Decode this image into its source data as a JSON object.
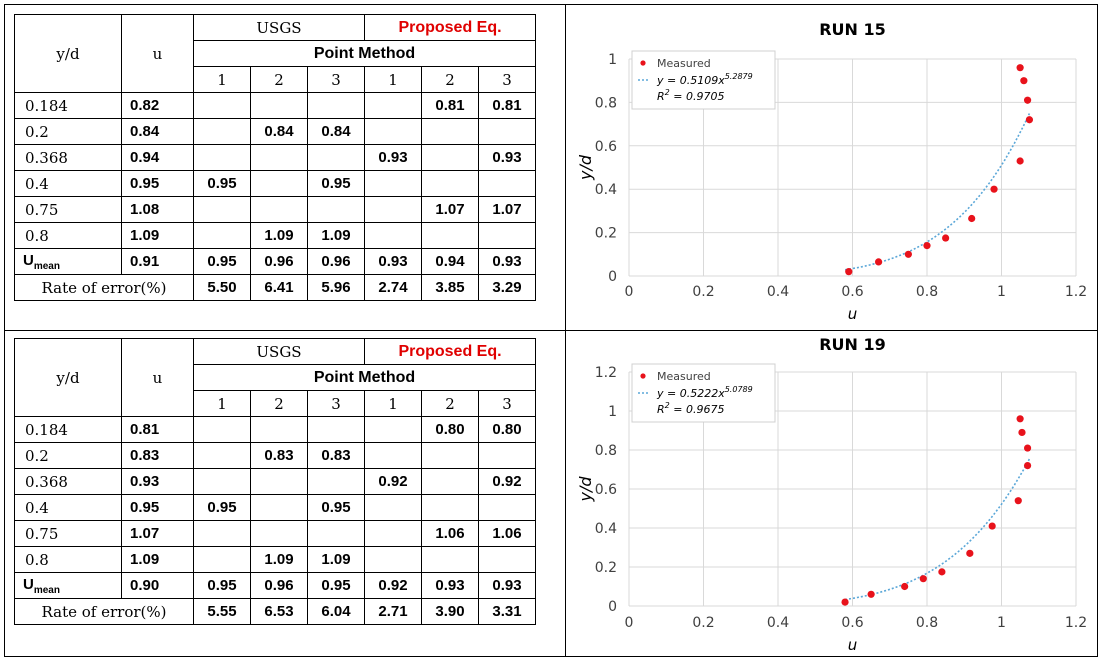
{
  "tables": [
    {
      "usgs_label": "USGS",
      "proposed_label": "Proposed Eq.",
      "point_method_label": "Point Method",
      "col_yd": "y/d",
      "col_u": "u",
      "point_numbers": [
        "1",
        "2",
        "3",
        "1",
        "2",
        "3"
      ],
      "rows": [
        {
          "yd": "0.184",
          "u": "0.82",
          "cells": [
            "",
            "",
            "",
            "",
            "0.81",
            "0.81"
          ]
        },
        {
          "yd": "0.2",
          "u": "0.84",
          "cells": [
            "",
            "0.84",
            "0.84",
            "",
            "",
            ""
          ]
        },
        {
          "yd": "0.368",
          "u": "0.94",
          "cells": [
            "",
            "",
            "",
            "0.93",
            "",
            "0.93"
          ]
        },
        {
          "yd": "0.4",
          "u": "0.95",
          "cells": [
            "0.95",
            "",
            "0.95",
            "",
            "",
            ""
          ]
        },
        {
          "yd": "0.75",
          "u": "1.08",
          "cells": [
            "",
            "",
            "",
            "",
            "1.07",
            "1.07"
          ]
        },
        {
          "yd": "0.8",
          "u": "1.09",
          "cells": [
            "",
            "1.09",
            "1.09",
            "",
            "",
            ""
          ]
        }
      ],
      "umean_label": "U",
      "umean_sub": "mean",
      "umean_u": "0.91",
      "umean_cells": [
        "0.95",
        "0.96",
        "0.96",
        "0.93",
        "0.94",
        "0.93"
      ],
      "error_label": "Rate of error(%)",
      "error_cells": [
        "5.50",
        "6.41",
        "5.96",
        "2.74",
        "3.85",
        "3.29"
      ]
    },
    {
      "usgs_label": "USGS",
      "proposed_label": "Proposed Eq.",
      "point_method_label": "Point Method",
      "col_yd": "y/d",
      "col_u": "u",
      "point_numbers": [
        "1",
        "2",
        "3",
        "1",
        "2",
        "3"
      ],
      "rows": [
        {
          "yd": "0.184",
          "u": "0.81",
          "cells": [
            "",
            "",
            "",
            "",
            "0.80",
            "0.80"
          ]
        },
        {
          "yd": "0.2",
          "u": "0.83",
          "cells": [
            "",
            "0.83",
            "0.83",
            "",
            "",
            ""
          ]
        },
        {
          "yd": "0.368",
          "u": "0.93",
          "cells": [
            "",
            "",
            "",
            "0.92",
            "",
            "0.92"
          ]
        },
        {
          "yd": "0.4",
          "u": "0.95",
          "cells": [
            "0.95",
            "",
            "0.95",
            "",
            "",
            ""
          ]
        },
        {
          "yd": "0.75",
          "u": "1.07",
          "cells": [
            "",
            "",
            "",
            "",
            "1.06",
            "1.06"
          ]
        },
        {
          "yd": "0.8",
          "u": "1.09",
          "cells": [
            "",
            "1.09",
            "1.09",
            "",
            "",
            ""
          ]
        }
      ],
      "umean_label": "U",
      "umean_sub": "mean",
      "umean_u": "0.90",
      "umean_cells": [
        "0.95",
        "0.96",
        "0.95",
        "0.92",
        "0.93",
        "0.93"
      ],
      "error_label": "Rate of error(%)",
      "error_cells": [
        "5.55",
        "6.53",
        "6.04",
        "2.71",
        "3.90",
        "3.31"
      ]
    }
  ],
  "chart_data": [
    {
      "type": "scatter",
      "title": "RUN 15",
      "xlabel": "u",
      "ylabel": "y/d",
      "xlim": [
        0,
        1.2
      ],
      "ylim": [
        0,
        1
      ],
      "xticks": [
        "0",
        "0.2",
        "0.4",
        "0.6",
        "0.8",
        "1",
        "1.2"
      ],
      "yticks": [
        "0",
        "0.2",
        "0.4",
        "0.6",
        "0.8",
        "1"
      ],
      "yticks_values": [
        0,
        0.2,
        0.4,
        0.6,
        0.8,
        1
      ],
      "grid": true,
      "legend_position": "top-left",
      "marker_color": "#e8121b",
      "trend_color": "#5aa7d8",
      "series": [
        {
          "name": "Measured",
          "points": [
            [
              0.59,
              0.02
            ],
            [
              0.67,
              0.065
            ],
            [
              0.75,
              0.1
            ],
            [
              0.8,
              0.14
            ],
            [
              0.85,
              0.175
            ],
            [
              0.92,
              0.265
            ],
            [
              0.98,
              0.4
            ],
            [
              1.05,
              0.53
            ],
            [
              1.05,
              0.96
            ],
            [
              1.06,
              0.9
            ],
            [
              1.07,
              0.81
            ],
            [
              1.075,
              0.72
            ]
          ]
        }
      ],
      "trendline": {
        "a": 0.5109,
        "b": 5.2879,
        "x_range": [
          0.58,
          1.075
        ],
        "equation": "y = 0.5109x^5.2879",
        "eq_prefix": "y = 0.5109x",
        "eq_exp": "5.2879",
        "r2_prefix": "R",
        "r2_value": " = 0.9705"
      }
    },
    {
      "type": "scatter",
      "title": "RUN 19",
      "xlabel": "u",
      "ylabel": "y/d",
      "xlim": [
        0,
        1.2
      ],
      "ylim": [
        0,
        1.2
      ],
      "xticks": [
        "0",
        "0.2",
        "0.4",
        "0.6",
        "0.8",
        "1",
        "1.2"
      ],
      "yticks": [
        "0",
        "0.2",
        "0.4",
        "0.6",
        "0.8",
        "1",
        "1.2"
      ],
      "yticks_values": [
        0,
        0.2,
        0.4,
        0.6,
        0.8,
        1,
        1.2
      ],
      "grid": true,
      "legend_position": "top-left",
      "marker_color": "#e8121b",
      "trend_color": "#5aa7d8",
      "series": [
        {
          "name": "Measured",
          "points": [
            [
              0.58,
              0.02
            ],
            [
              0.65,
              0.06
            ],
            [
              0.74,
              0.1
            ],
            [
              0.79,
              0.14
            ],
            [
              0.84,
              0.175
            ],
            [
              0.915,
              0.27
            ],
            [
              0.975,
              0.41
            ],
            [
              1.045,
              0.54
            ],
            [
              1.05,
              0.96
            ],
            [
              1.055,
              0.89
            ],
            [
              1.07,
              0.81
            ],
            [
              1.07,
              0.72
            ]
          ]
        }
      ],
      "trendline": {
        "a": 0.5222,
        "b": 5.0789,
        "x_range": [
          0.58,
          1.075
        ],
        "equation": "y = 0.5222x^5.0789",
        "eq_prefix": "y = 0.5222x",
        "eq_exp": "5.0789",
        "r2_prefix": "R",
        "r2_value": " = 0.9675"
      }
    }
  ]
}
